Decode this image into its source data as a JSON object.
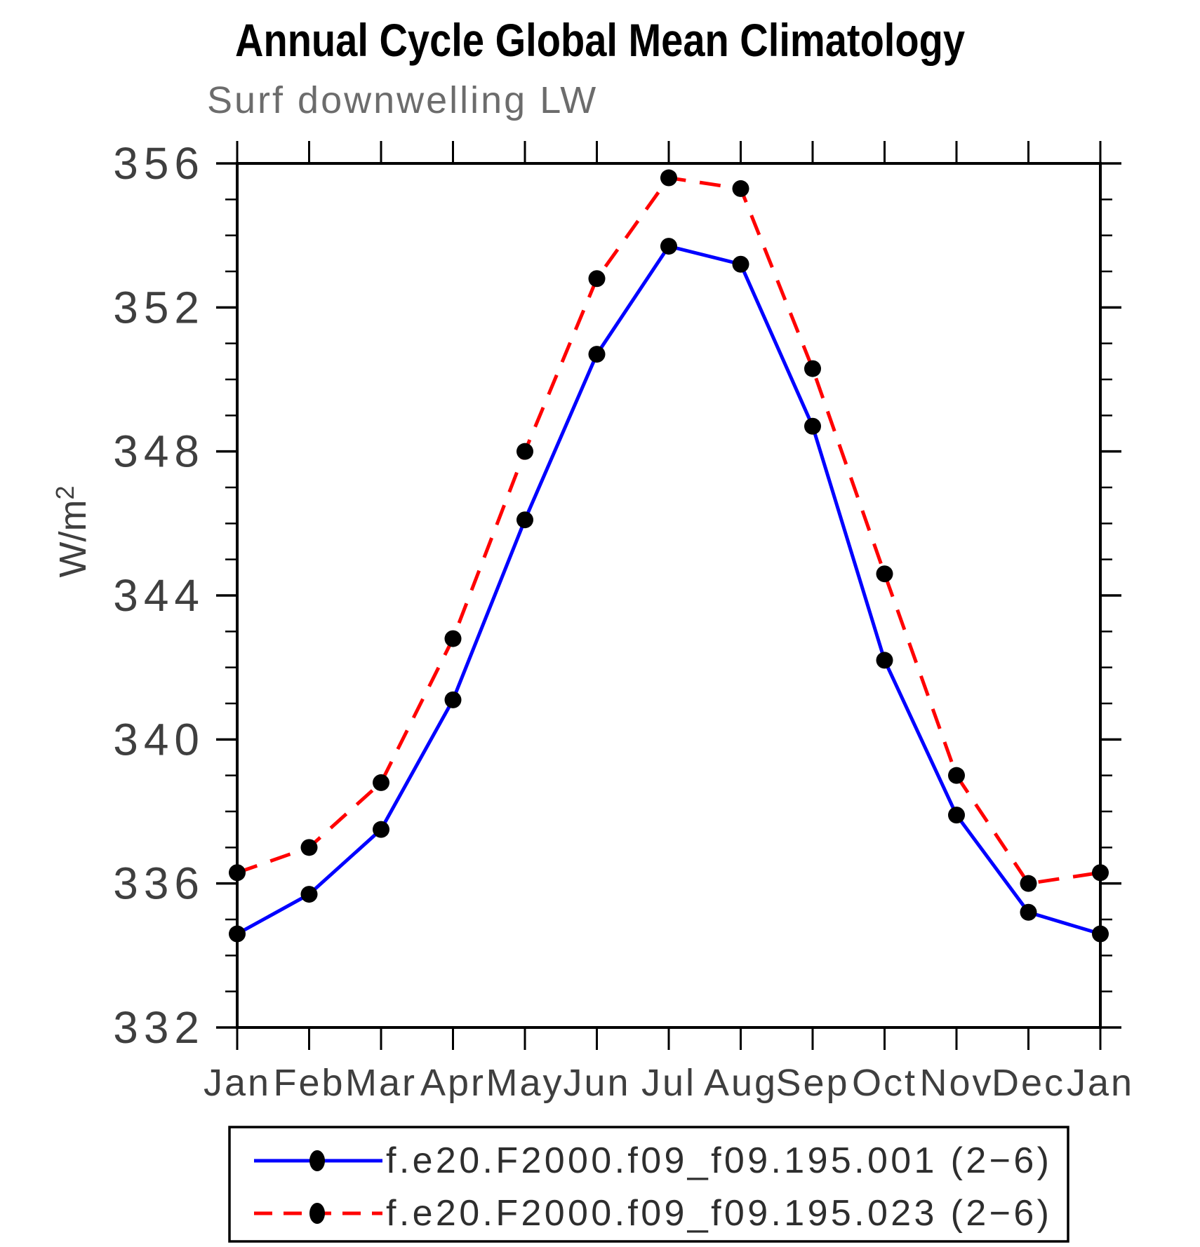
{
  "title": "Annual Cycle Global Mean Climatology",
  "subtitle": "Surf downwelling LW",
  "ylabel": {
    "text": "W/m",
    "sup": "2"
  },
  "chart_data": {
    "type": "line",
    "categories": [
      "Jan",
      "Feb",
      "Mar",
      "Apr",
      "May",
      "Jun",
      "Jul",
      "Aug",
      "Sep",
      "Oct",
      "Nov",
      "Dec",
      "Jan"
    ],
    "series": [
      {
        "name": "f.e20.F2000.f09_f09.195.001 (2−6)",
        "color": "#0000ff",
        "line_style": "solid",
        "marker": "black-filled-circle",
        "values": [
          334.6,
          335.7,
          337.5,
          341.1,
          346.1,
          350.7,
          353.7,
          353.2,
          348.7,
          342.2,
          337.9,
          335.2,
          334.6
        ]
      },
      {
        "name": "f.e20.F2000.f09_f09.195.023 (2−6)",
        "color": "#ff0000",
        "line_style": "dashed",
        "marker": "black-filled-circle",
        "values": [
          336.3,
          337.0,
          338.8,
          342.8,
          348.0,
          352.8,
          355.6,
          355.3,
          350.3,
          344.6,
          339.0,
          336.0,
          336.3
        ]
      }
    ],
    "xlabel": "",
    "ylabel": "W/m2",
    "ylim": [
      332,
      356
    ],
    "y_major_ticks": [
      332,
      336,
      340,
      344,
      348,
      352,
      356
    ],
    "y_minor_step": 1,
    "grid": false,
    "legend_position": "bottom",
    "marker_color": "#000000",
    "axis_color": "#000000"
  }
}
